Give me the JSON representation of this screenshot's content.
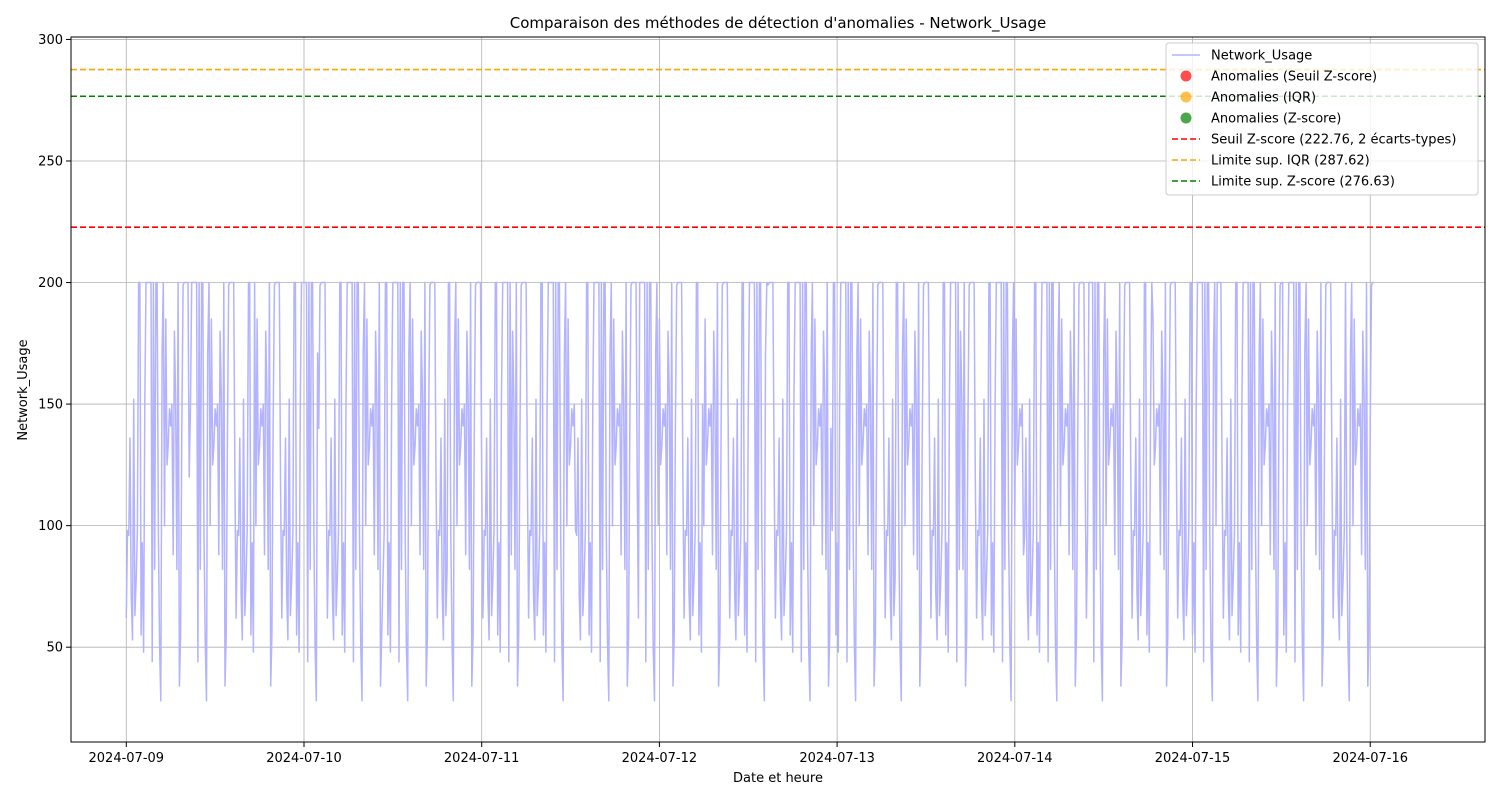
{
  "chart_data": {
    "type": "line",
    "title": "Comparaison des méthodes de détection d'anomalies - Network_Usage",
    "xlabel": "Date et heure",
    "ylabel": "Network_Usage",
    "xlim": [
      "2024-07-08T16:32",
      "2024-07-16T15:30"
    ],
    "ylim": [
      11,
      301
    ],
    "x_ticks": [
      "2024-07-09",
      "2024-07-10",
      "2024-07-11",
      "2024-07-12",
      "2024-07-13",
      "2024-07-14",
      "2024-07-15",
      "2024-07-16"
    ],
    "y_ticks": [
      50,
      100,
      150,
      200,
      250,
      300
    ],
    "grid": true,
    "legend_position": "top-right",
    "series": [
      {
        "name": "Network_Usage",
        "color": "#b3b3ff",
        "x_start": "2024-07-09T00:00",
        "x_step_minutes": 10,
        "sampling_note_hidden": true,
        "values_per_day_pattern": [
          62,
          150,
          200,
          140,
          78,
          82,
          88,
          98,
          200,
          100,
          199,
          98,
          200,
          180,
          96,
          200,
          185,
          200,
          200,
          200,
          153,
          136,
          200,
          125,
          200,
          200,
          96,
          82,
          72,
          200,
          133,
          200,
          55,
          50,
          200,
          53,
          200,
          148,
          200,
          93,
          28,
          34,
          152,
          44,
          141,
          120,
          48,
          171,
          55,
          63,
          200,
          150
        ]
      }
    ],
    "markers": [
      {
        "name": "Anomalies (Seuil Z-score)",
        "color": "#ff0000",
        "count": 0
      },
      {
        "name": "Anomalies (IQR)",
        "color": "#ffa500",
        "count": 0
      },
      {
        "name": "Anomalies (Z-score)",
        "color": "#008000",
        "count": 0
      }
    ],
    "hlines": [
      {
        "name": "Seuil Z-score (222.76, 2 écarts-types)",
        "value": 222.76,
        "color": "#ff0000"
      },
      {
        "name": "Limite sup. IQR (287.62)",
        "value": 287.62,
        "color": "#ffa500"
      },
      {
        "name": "Limite sup. Z-score (276.63)",
        "value": 276.63,
        "color": "#008000"
      }
    ]
  }
}
